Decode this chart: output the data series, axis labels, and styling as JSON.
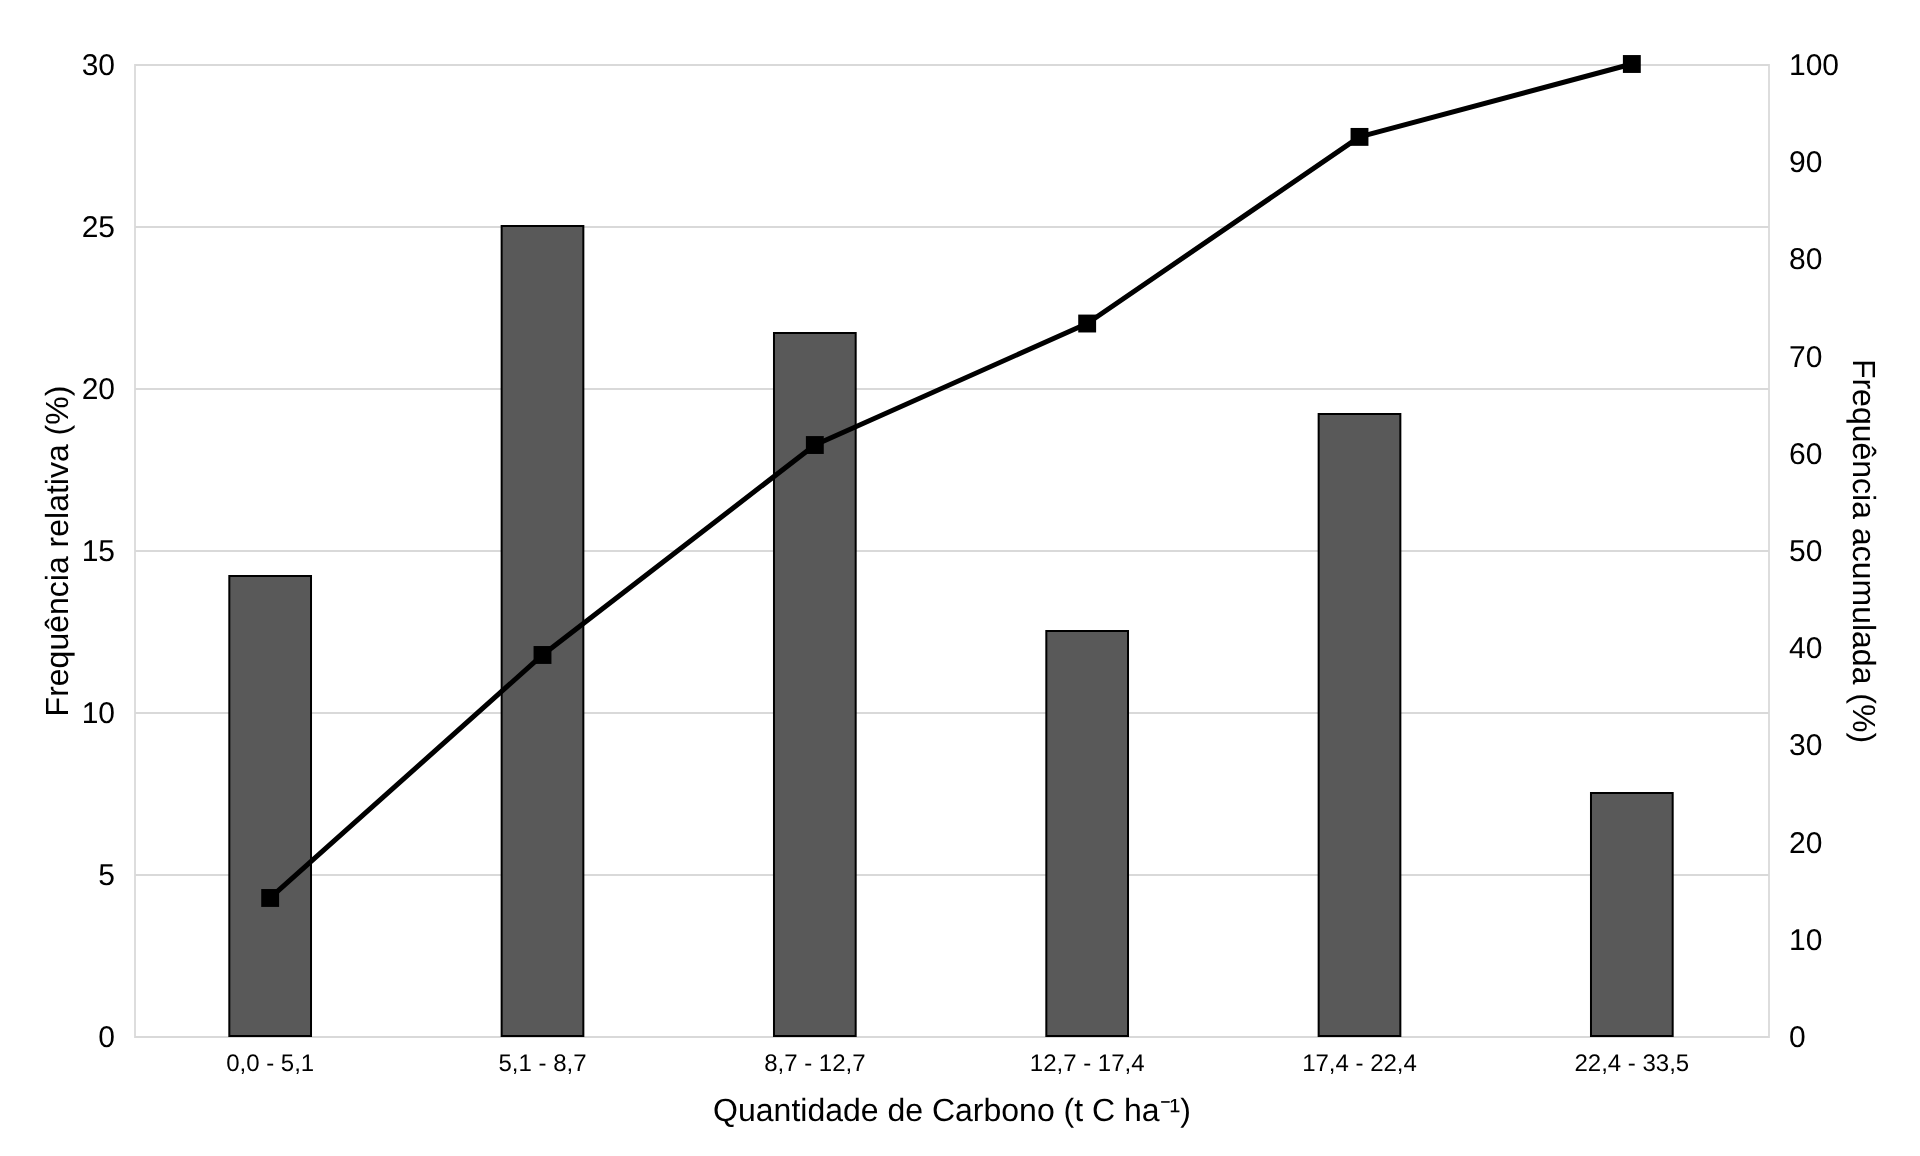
{
  "chart_data": {
    "type": "bar",
    "xlabel": "Quantidade de Carbono (t C ha⁻¹)",
    "ylabel": "Frequência relativa (%)",
    "y2label": "Frequência acumulada (%)",
    "categories": [
      "0,0 - 5,1",
      "5,1 - 8,7",
      "8,7 - 12,7",
      "12,7 - 17,4",
      "17,4 - 22,4",
      "22,4 - 33,5"
    ],
    "series": [
      {
        "color": "#595959",
        "values": [
          14.2,
          25.0,
          21.7,
          12.5,
          19.2,
          7.5
        ]
      },
      {
        "type": "line",
        "axis": "y2",
        "color": "#000000",
        "marker": "square",
        "line_style": "solid",
        "values": [
          14.2,
          39.2,
          60.8,
          73.3,
          92.5,
          100
        ]
      }
    ],
    "ylim": [
      0,
      30
    ],
    "yticks": [
      0,
      5,
      10,
      15,
      20,
      25,
      30
    ],
    "y2lim": [
      0,
      100
    ],
    "y2ticks": [
      0,
      10,
      20,
      30,
      40,
      50,
      60,
      70,
      80,
      90,
      100
    ],
    "grid": "y"
  }
}
